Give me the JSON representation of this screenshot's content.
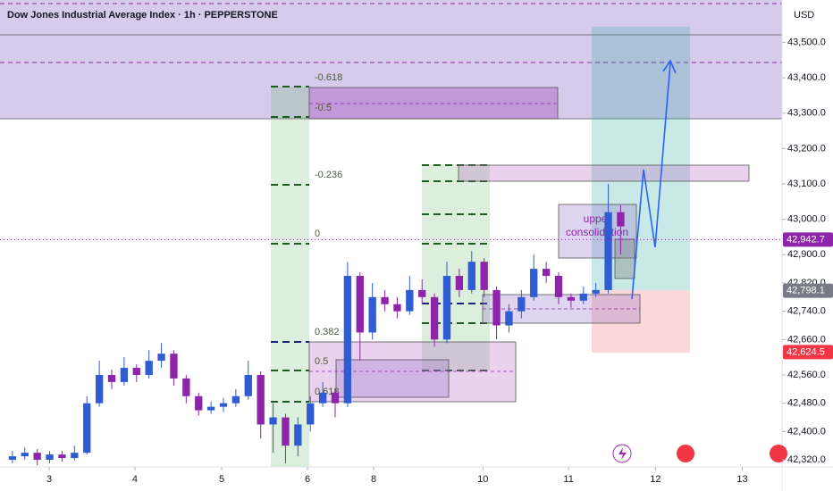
{
  "chart_data": {
    "type": "candlestick",
    "title": "Dow Jones Industrial Average Index · 1h · PEPPERSTONE",
    "currency": "USD",
    "up_color": "#2f5bd3",
    "down_color": "#8e24aa",
    "open": [
      42320,
      42330,
      42340,
      42320,
      42335,
      42325,
      42340,
      42480,
      42560,
      42540,
      42580,
      42560,
      42600,
      42620,
      42550,
      42500,
      42460,
      42470,
      42480,
      42500,
      42560,
      42420,
      42440,
      42360,
      42420,
      42480,
      42510,
      42480,
      42840,
      42680,
      42780,
      42760,
      42740,
      42800,
      42780,
      42660,
      42840,
      42800,
      42880,
      42800,
      42700,
      42740,
      42780,
      42860,
      42840,
      42780,
      42770,
      42790,
      42800,
      43020
    ],
    "high": [
      42345,
      42355,
      42350,
      42345,
      42345,
      42360,
      42500,
      42600,
      42575,
      42610,
      42590,
      42630,
      42650,
      42630,
      42560,
      42510,
      42485,
      42495,
      42520,
      42600,
      42570,
      42480,
      42450,
      42440,
      42500,
      42540,
      42520,
      42880,
      42850,
      42820,
      42800,
      42780,
      42840,
      42830,
      42790,
      42880,
      42860,
      42910,
      42890,
      42810,
      42760,
      42800,
      42900,
      42880,
      42850,
      42790,
      42810,
      42820,
      43100,
      43040
    ],
    "low": [
      42310,
      42320,
      42305,
      42310,
      42315,
      42318,
      42335,
      42470,
      42520,
      42530,
      42540,
      42550,
      42580,
      42530,
      42480,
      42445,
      42450,
      42455,
      42470,
      42490,
      42380,
      42340,
      42310,
      42330,
      42400,
      42470,
      42440,
      42470,
      42600,
      42660,
      42740,
      42720,
      42730,
      42760,
      42640,
      42650,
      42780,
      42790,
      42780,
      42660,
      42680,
      42720,
      42770,
      42820,
      42760,
      42750,
      42760,
      42780,
      42790,
      42900
    ],
    "close": [
      42330,
      42340,
      42320,
      42335,
      42325,
      42340,
      42480,
      42560,
      42540,
      42580,
      42560,
      42600,
      42620,
      42550,
      42500,
      42460,
      42470,
      42480,
      42500,
      42560,
      42420,
      42440,
      42360,
      42420,
      42480,
      42510,
      42480,
      42840,
      42680,
      42780,
      42760,
      42740,
      42800,
      42780,
      42660,
      42840,
      42800,
      42880,
      42800,
      42700,
      42740,
      42780,
      42860,
      42840,
      42780,
      42770,
      42790,
      42800,
      43020,
      42980
    ],
    "xlim": [
      -1,
      62
    ],
    "xticks": [
      {
        "value": 2.96,
        "label": "3"
      },
      {
        "value": 9.87,
        "label": "4"
      },
      {
        "value": 16.86,
        "label": "5"
      },
      {
        "value": 23.77,
        "label": "6"
      },
      {
        "value": 29.1,
        "label": "8"
      },
      {
        "value": 37.9,
        "label": "10"
      },
      {
        "value": 44.8,
        "label": "11"
      },
      {
        "value": 51.8,
        "label": "12"
      },
      {
        "value": 58.8,
        "label": "13"
      }
    ],
    "ylim": [
      42300,
      43620
    ],
    "yticks": [
      {
        "value": 42320,
        "label": "42,320.0"
      },
      {
        "value": 42400,
        "label": "42,400.0"
      },
      {
        "value": 42480,
        "label": "42,480.0"
      },
      {
        "value": 42560,
        "label": "42,560.0"
      },
      {
        "value": 42660,
        "label": "42,660.0"
      },
      {
        "value": 42740,
        "label": "42,740.0"
      },
      {
        "value": 42820,
        "label": "42,820.0"
      },
      {
        "value": 42900,
        "label": "42,900.0"
      },
      {
        "value": 43000,
        "label": "43,000.0"
      },
      {
        "value": 43100,
        "label": "43,100.0"
      },
      {
        "value": 43200,
        "label": "43,200.0"
      },
      {
        "value": 43300,
        "label": "43,300.0"
      },
      {
        "value": 43400,
        "label": "43,400.0"
      },
      {
        "value": 43500,
        "label": "43,500.0"
      }
    ],
    "price_tags": [
      {
        "value": 42942.7,
        "label": "42,942.7",
        "color": "#8e24aa"
      },
      {
        "value": 42798.1,
        "label": "42,798.1",
        "color": "#787b86"
      },
      {
        "value": 42624.5,
        "label": "42,624.5",
        "color": "#f23645"
      }
    ],
    "annotations": [
      "-0.618",
      "-0.5",
      "-0.236",
      "0",
      "0.382",
      "0.5",
      "0.618",
      "upper",
      "consolidation"
    ]
  }
}
